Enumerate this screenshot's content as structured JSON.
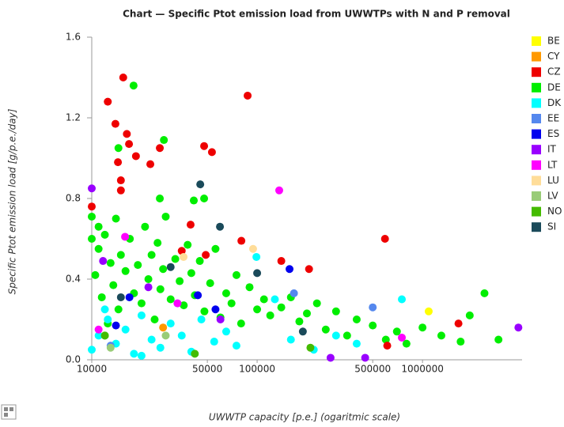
{
  "chart_data": {
    "type": "scatter",
    "title": "Chart — Specific Ptot emission load from UWWTPs with N and P removal",
    "x_label": "UWWTP capacity [p.e.] (ogaritmic scale)",
    "y_label": "Specific Ptot emission load [g/p.e./day]",
    "x_log": true,
    "grid": false,
    "legend": "right",
    "xlim": [
      10000,
      4000000
    ],
    "ylim": [
      0,
      1.6
    ],
    "xticks": [
      10000,
      50000,
      100000,
      500000,
      1000000
    ],
    "yticks": [
      {
        "value": 0,
        "label": "0.0"
      },
      {
        "value": 0.4,
        "label": "0.4"
      },
      {
        "value": 0.8,
        "label": "0.8"
      },
      {
        "value": 1.2,
        "label": "1.2"
      },
      {
        "value": 1.6,
        "label": "1.6"
      }
    ],
    "series": [
      {
        "name": "DE",
        "color": "#00ee00",
        "x": [
          10500,
          11000,
          11500,
          12000,
          12500,
          13000,
          13500,
          14000,
          14500,
          15000,
          16000,
          17000,
          18000,
          19000,
          20000,
          21000,
          22000,
          23000,
          24000,
          25000,
          26000,
          27000,
          28000,
          30000,
          32000,
          34000,
          36000,
          38000,
          40000,
          42000,
          45000,
          48000,
          52000,
          56000,
          60000,
          65000,
          70000,
          75000,
          80000,
          90000,
          100000,
          110000,
          120000,
          140000,
          160000,
          180000,
          200000,
          230000,
          260000,
          300000,
          350000,
          400000,
          500000,
          600000,
          700000,
          800000,
          1000000,
          1300000,
          1700000,
          2370000,
          1930000,
          2880000,
          17900,
          27300,
          25800,
          14500,
          41400,
          47800,
          10000,
          10000,
          11000,
          12000
        ],
        "values": [
          0.42,
          0.55,
          0.31,
          0.62,
          0.18,
          0.48,
          0.37,
          0.7,
          0.25,
          0.52,
          0.44,
          0.6,
          0.33,
          0.47,
          0.28,
          0.66,
          0.4,
          0.52,
          0.2,
          0.58,
          0.35,
          0.45,
          0.71,
          0.3,
          0.5,
          0.39,
          0.27,
          0.57,
          0.43,
          0.32,
          0.49,
          0.24,
          0.38,
          0.55,
          0.21,
          0.33,
          0.28,
          0.42,
          0.18,
          0.36,
          0.25,
          0.3,
          0.22,
          0.26,
          0.31,
          0.19,
          0.23,
          0.28,
          0.15,
          0.24,
          0.12,
          0.2,
          0.17,
          0.1,
          0.14,
          0.08,
          0.16,
          0.12,
          0.09,
          0.33,
          0.22,
          0.1,
          1.36,
          1.09,
          0.8,
          1.05,
          0.79,
          0.8,
          0.71,
          0.6,
          0.66,
          0.12
        ]
      },
      {
        "name": "DK",
        "color": "#00ffff",
        "x": [
          10000,
          11000,
          12500,
          14000,
          16000,
          18000,
          20000,
          23000,
          26000,
          30000,
          35000,
          40000,
          46000,
          55000,
          65000,
          75000,
          99000,
          128000,
          160000,
          220000,
          300000,
          400000,
          750000,
          12000,
          20000,
          33000
        ],
        "values": [
          0.05,
          0.12,
          0.2,
          0.08,
          0.15,
          0.03,
          0.22,
          0.1,
          0.06,
          0.18,
          0.12,
          0.04,
          0.2,
          0.09,
          0.14,
          0.07,
          0.51,
          0.3,
          0.1,
          0.05,
          0.12,
          0.08,
          0.3,
          0.25,
          0.02,
          0.28
        ]
      },
      {
        "name": "BE",
        "color": "#ffff00",
        "x": [
          1090000
        ],
        "values": [
          0.24
        ]
      },
      {
        "name": "CY",
        "color": "#ff9900",
        "x": [
          27000
        ],
        "values": [
          0.16
        ]
      },
      {
        "name": "CZ",
        "color": "#ee0000",
        "x": [
          15500,
          12500,
          13900,
          16300,
          16800,
          18500,
          14400,
          15000,
          15000,
          22600,
          25800,
          47800,
          53300,
          87600,
          39600,
          10000,
          80300,
          140000,
          206000,
          593000,
          1650000,
          48900,
          35000,
          612000
        ],
        "values": [
          1.4,
          1.28,
          1.17,
          1.12,
          1.07,
          1.01,
          0.98,
          0.89,
          0.84,
          0.97,
          1.05,
          1.06,
          1.03,
          1.31,
          0.67,
          0.76,
          0.59,
          0.49,
          0.45,
          0.6,
          0.18,
          0.52,
          0.54,
          0.07
        ]
      },
      {
        "name": "EE",
        "color": "#5588ee",
        "x": [
          167000,
          500000,
          13000
        ],
        "values": [
          0.33,
          0.26,
          0.07
        ]
      },
      {
        "name": "ES",
        "color": "#0000ee",
        "x": [
          157000,
          16900,
          56000,
          43800,
          14000
        ],
        "values": [
          0.45,
          0.31,
          0.25,
          0.32,
          0.17
        ]
      },
      {
        "name": "IT",
        "color": "#9900ff",
        "x": [
          10000,
          3800000,
          278000,
          11700,
          60000,
          22000,
          450000
        ],
        "values": [
          0.85,
          0.16,
          0.01,
          0.49,
          0.2,
          0.36,
          0.01
        ]
      },
      {
        "name": "LT",
        "color": "#ff00ff",
        "x": [
          136000,
          15900,
          750000,
          33000,
          11000
        ],
        "values": [
          0.84,
          0.61,
          0.11,
          0.28,
          0.15
        ]
      },
      {
        "name": "LU",
        "color": "#ffdd99",
        "x": [
          94500,
          35900
        ],
        "values": [
          0.55,
          0.51
        ]
      },
      {
        "name": "LV",
        "color": "#99cc77",
        "x": [
          13000,
          28000
        ],
        "values": [
          0.06,
          0.12
        ]
      },
      {
        "name": "NO",
        "color": "#44bb00",
        "x": [
          12000,
          42000,
          210000
        ],
        "values": [
          0.12,
          0.03,
          0.06
        ]
      },
      {
        "name": "SI",
        "color": "#1a4a5a",
        "x": [
          45300,
          59600,
          100000,
          189000,
          15000,
          30000
        ],
        "values": [
          0.87,
          0.66,
          0.43,
          0.14,
          0.31,
          0.46
        ]
      }
    ]
  }
}
